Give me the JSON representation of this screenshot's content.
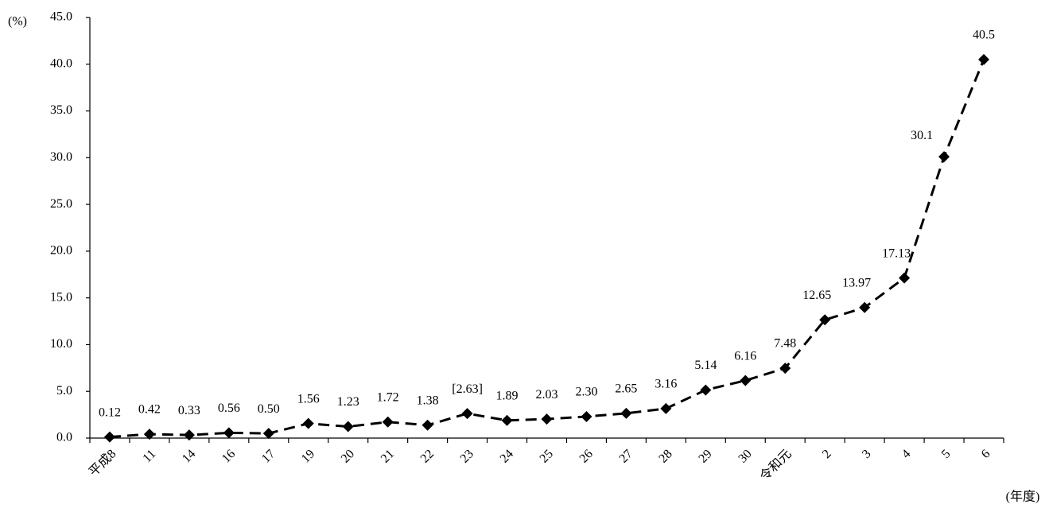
{
  "chart_data": {
    "type": "line",
    "y_unit": "(%)",
    "x_unit": "(年度)",
    "categories": [
      "平成8",
      "11",
      "14",
      "16",
      "17",
      "19",
      "20",
      "21",
      "22",
      "23",
      "24",
      "25",
      "26",
      "27",
      "28",
      "29",
      "30",
      "令和元",
      "2",
      "3",
      "4",
      "5",
      "6"
    ],
    "values": [
      0.12,
      0.42,
      0.33,
      0.56,
      0.5,
      1.56,
      1.23,
      1.72,
      1.38,
      2.63,
      1.89,
      2.03,
      2.3,
      2.65,
      3.16,
      5.14,
      6.16,
      7.48,
      12.65,
      13.97,
      17.13,
      30.1,
      40.5
    ],
    "value_labels": [
      "0.12",
      "0.42",
      "0.33",
      "0.56",
      "0.50",
      "1.56",
      "1.23",
      "1.72",
      "1.38",
      "[2.63]",
      "1.89",
      "2.03",
      "2.30",
      "2.65",
      "3.16",
      "5.14",
      "6.16",
      "7.48",
      "12.65",
      "13.97",
      "17.13",
      "30.1",
      "40.5"
    ],
    "color": "#000000",
    "ylim": [
      0,
      45
    ],
    "yticks": [
      {
        "value": 0,
        "label": "0.0"
      },
      {
        "value": 5,
        "label": "5.0"
      },
      {
        "value": 10,
        "label": "10.0"
      },
      {
        "value": 15,
        "label": "15.0"
      },
      {
        "value": 20,
        "label": "20.0"
      },
      {
        "value": 25,
        "label": "25.0"
      },
      {
        "value": 30,
        "label": "30.0"
      },
      {
        "value": 35,
        "label": "35.0"
      },
      {
        "value": 40,
        "label": "40.0"
      },
      {
        "value": 45,
        "label": "45.0"
      }
    ]
  }
}
